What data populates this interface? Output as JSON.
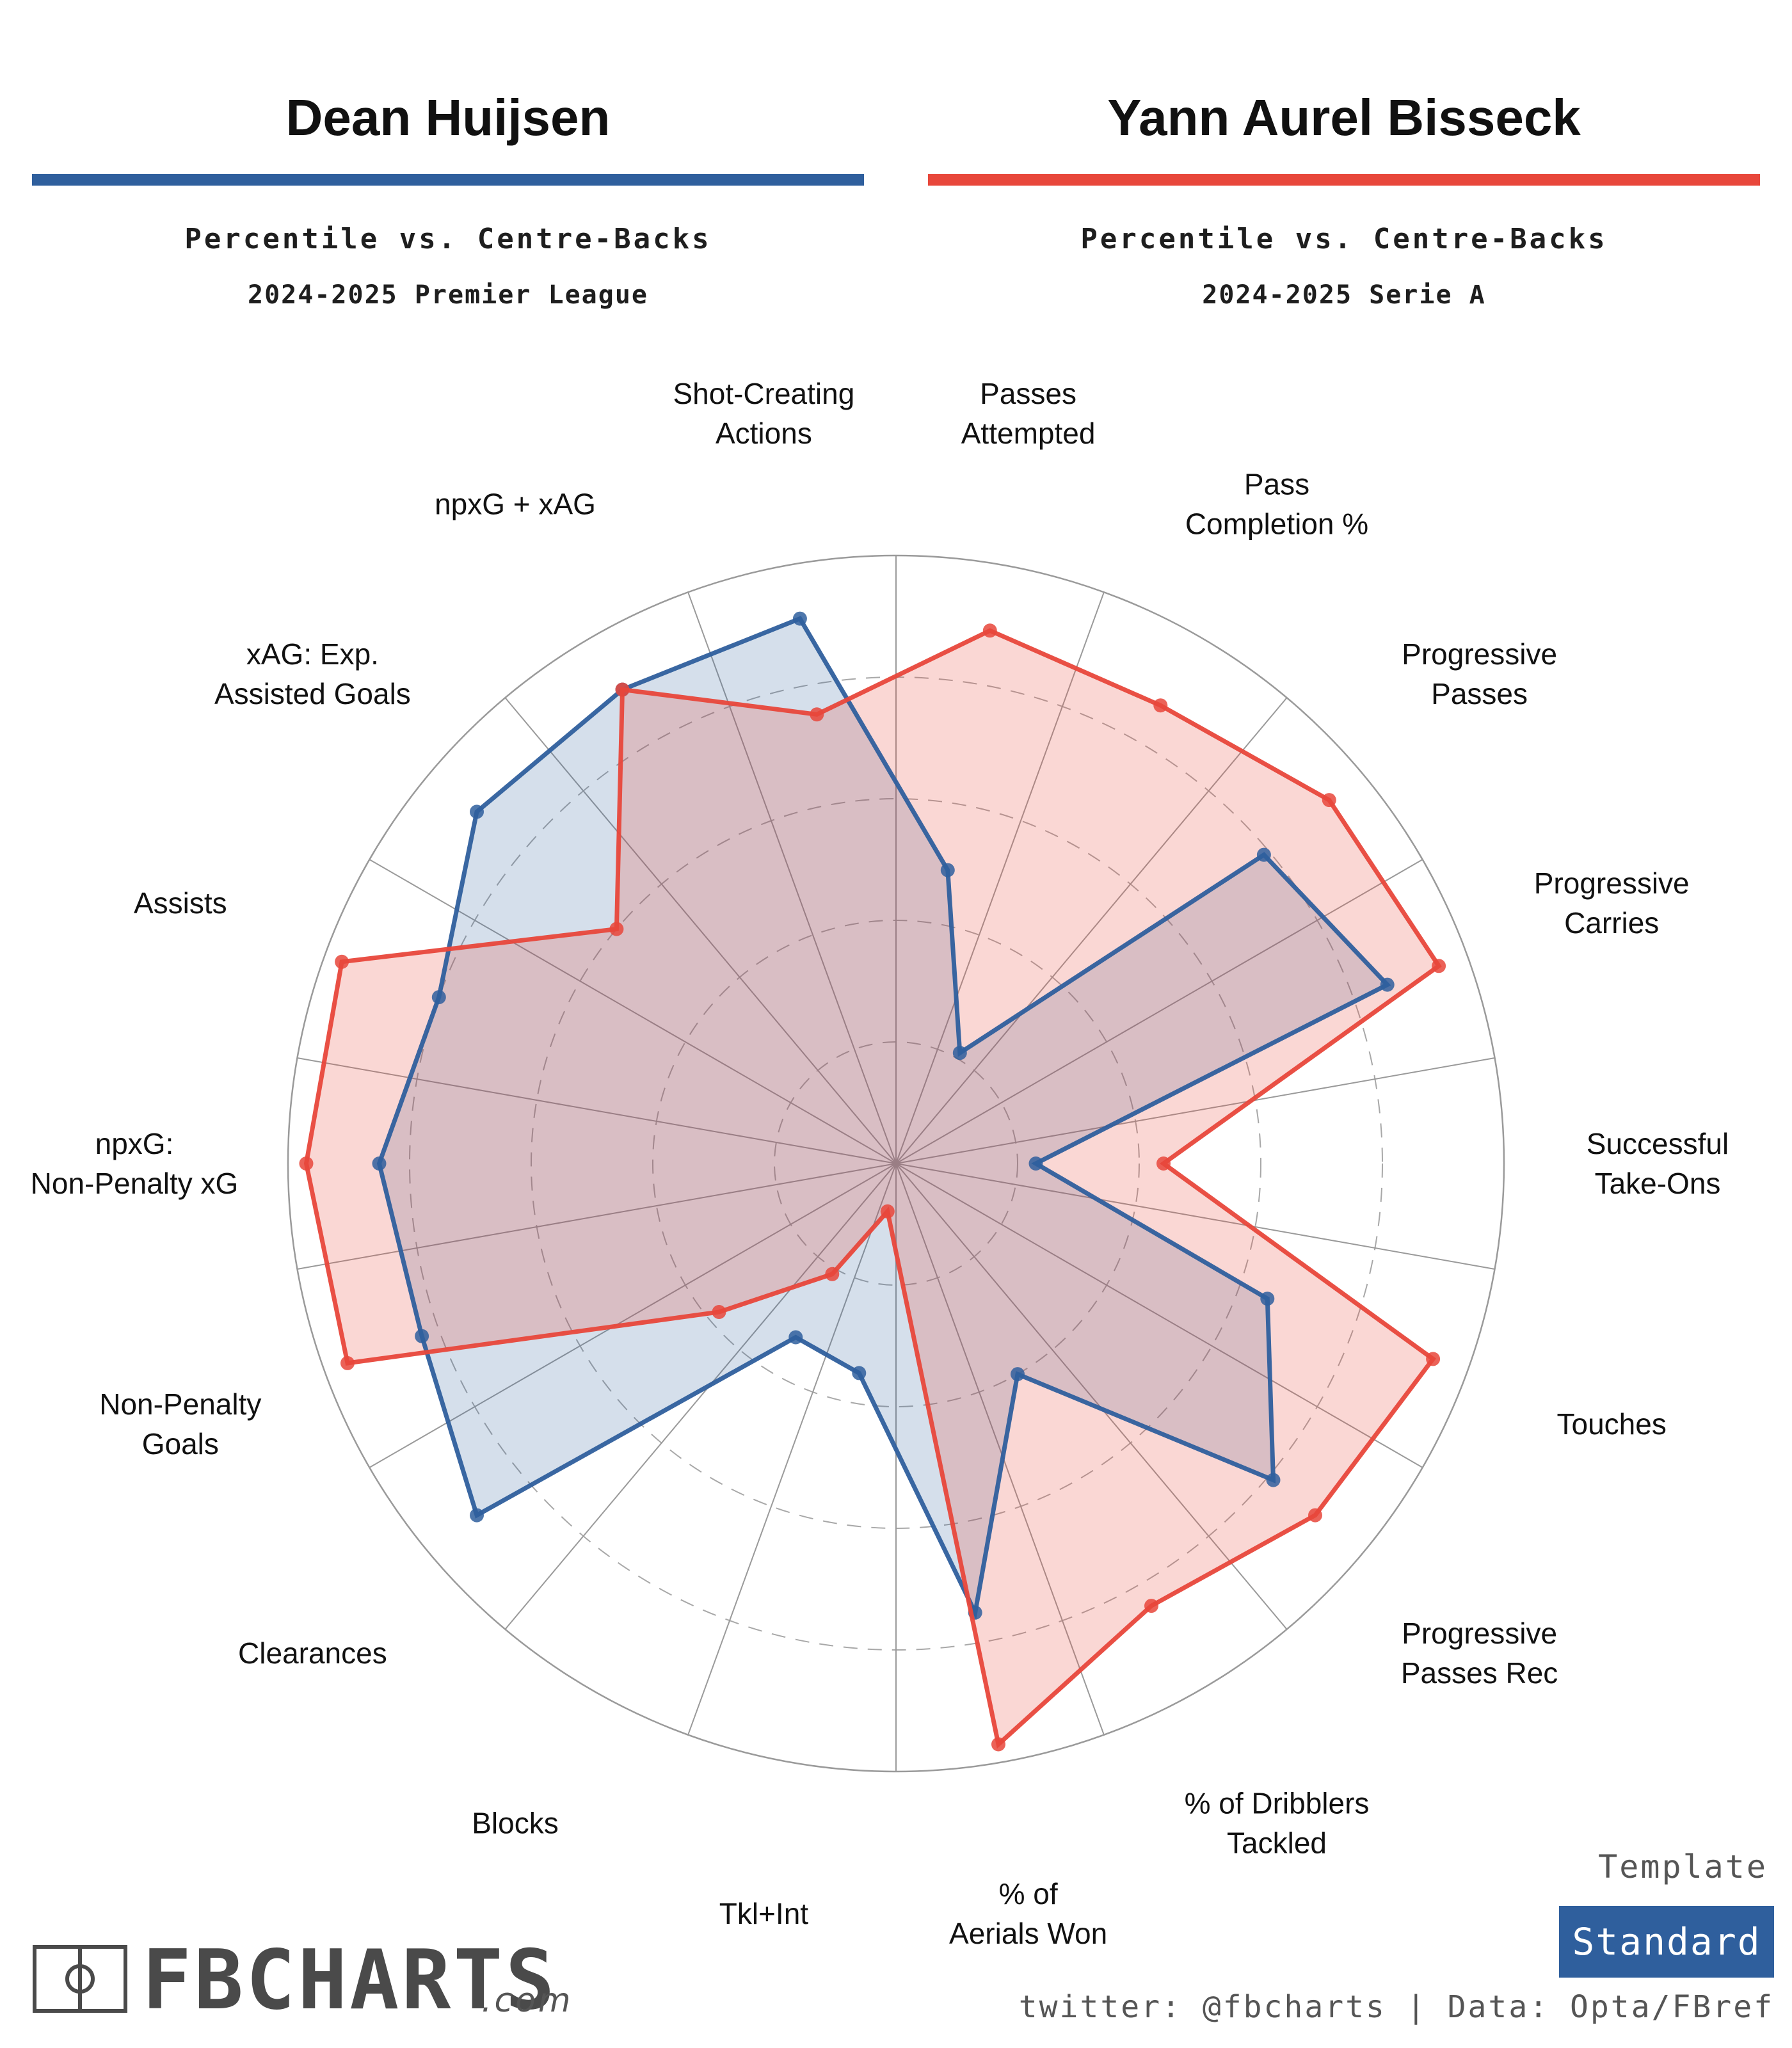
{
  "players": [
    {
      "name": "Dean Huijsen",
      "subtitle": "Percentile vs. Centre-Backs",
      "season": "2024-2025 Premier League",
      "color": "#2f5f9d"
    },
    {
      "name": "Yann Aurel Bisseck",
      "subtitle": "Percentile vs. Centre-Backs",
      "season": "2024-2025 Serie A",
      "color": "#e8473b"
    }
  ],
  "chart_data": {
    "type": "radar",
    "title": "",
    "scale": "percentile",
    "range": [
      0,
      100
    ],
    "gridlines": [
      20,
      40,
      60,
      80
    ],
    "categories": [
      "Passes Attempted",
      "Pass Completion %",
      "Progressive Passes",
      "Progressive Carries",
      "Successful Take-Ons",
      "Touches",
      "Progressive Passes Rec",
      "% of Dribblers Tackled",
      "% of Aerials Won",
      "Tkl+Int",
      "Blocks",
      "Clearances",
      "Non-Penalty Goals",
      "npxG: Non-Penalty xG",
      "Assists",
      "xAG: Exp. Assisted Goals",
      "npxG + xAG",
      "Shot-Creating Actions"
    ],
    "series": [
      {
        "name": "Dean Huijsen",
        "color": "#2f5f9d",
        "values": [
          49,
          21,
          79,
          86,
          23,
          65,
          81,
          40,
          75,
          35,
          33,
          90,
          83,
          85,
          80,
          90,
          90,
          91
        ]
      },
      {
        "name": "Yann Aurel Bisseck",
        "color": "#e8473b",
        "values": [
          89,
          87,
          93,
          95,
          44,
          94,
          90,
          84,
          97,
          8,
          21,
          38,
          96,
          97,
          97,
          60,
          90,
          75
        ]
      }
    ]
  },
  "branding": {
    "logo_text": "FBCHARTS",
    "logo_suffix": ".com",
    "template_label": "Template",
    "template_value": "Standard",
    "credit": "twitter: @fbcharts | Data: Opta/FBref"
  }
}
